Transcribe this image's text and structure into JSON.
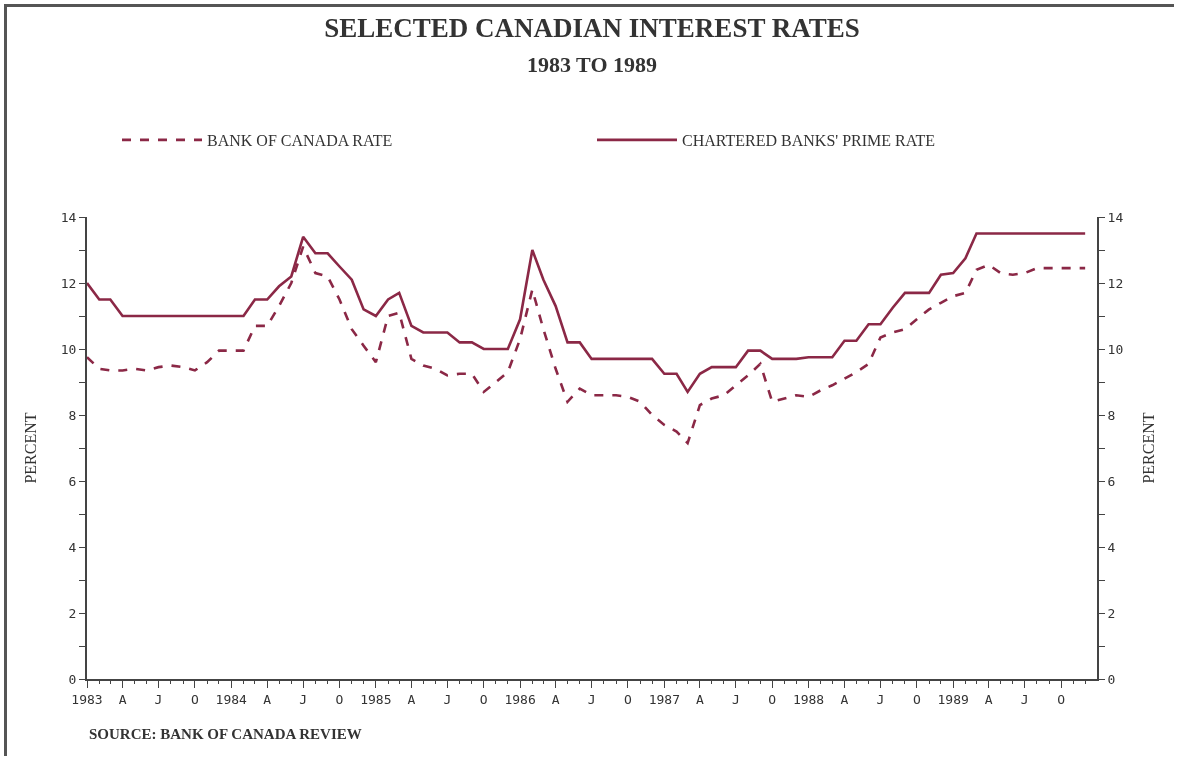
{
  "chart_data": {
    "type": "line",
    "title": "SELECTED CANADIAN INTEREST RATES",
    "subtitle": "1983 TO 1989",
    "ylabel": "PERCENT",
    "y2label": "PERCENT",
    "x": [
      "1983-01",
      "1983-02",
      "1983-03",
      "1983-04",
      "1983-05",
      "1983-06",
      "1983-07",
      "1983-08",
      "1983-09",
      "1983-10",
      "1983-11",
      "1983-12",
      "1984-01",
      "1984-02",
      "1984-03",
      "1984-04",
      "1984-05",
      "1984-06",
      "1984-07",
      "1984-08",
      "1984-09",
      "1984-10",
      "1984-11",
      "1984-12",
      "1985-01",
      "1985-02",
      "1985-03",
      "1985-04",
      "1985-05",
      "1985-06",
      "1985-07",
      "1985-08",
      "1985-09",
      "1985-10",
      "1985-11",
      "1985-12",
      "1986-01",
      "1986-02",
      "1986-03",
      "1986-04",
      "1986-05",
      "1986-06",
      "1986-07",
      "1986-08",
      "1986-09",
      "1986-10",
      "1986-11",
      "1986-12",
      "1987-01",
      "1987-02",
      "1987-03",
      "1987-04",
      "1987-05",
      "1987-06",
      "1987-07",
      "1987-08",
      "1987-09",
      "1987-10",
      "1987-11",
      "1987-12",
      "1988-01",
      "1988-02",
      "1988-03",
      "1988-04",
      "1988-05",
      "1988-06",
      "1988-07",
      "1988-08",
      "1988-09",
      "1988-10",
      "1988-11",
      "1988-12",
      "1989-01",
      "1989-02",
      "1989-03",
      "1989-04",
      "1989-05",
      "1989-06",
      "1989-07",
      "1989-08",
      "1989-09",
      "1989-10",
      "1989-11",
      "1989-12"
    ],
    "series": [
      {
        "name": "BANK OF CANADA RATE",
        "color": "#8b2846",
        "line_style": "dashed",
        "values": [
          9.75,
          9.4,
          9.35,
          9.35,
          9.4,
          9.35,
          9.45,
          9.5,
          9.45,
          9.35,
          9.6,
          9.95,
          9.95,
          9.95,
          10.7,
          10.7,
          11.3,
          12.0,
          13.1,
          12.3,
          12.2,
          11.5,
          10.6,
          10.1,
          9.6,
          11.0,
          11.1,
          9.7,
          9.5,
          9.4,
          9.2,
          9.25,
          9.25,
          8.7,
          9.0,
          9.3,
          10.3,
          11.8,
          10.6,
          9.4,
          8.4,
          8.8,
          8.6,
          8.6,
          8.6,
          8.55,
          8.4,
          8.0,
          7.7,
          7.5,
          7.15,
          8.3,
          8.5,
          8.6,
          8.9,
          9.2,
          9.55,
          8.4,
          8.5,
          8.6,
          8.55,
          8.75,
          8.9,
          9.1,
          9.3,
          9.55,
          10.35,
          10.5,
          10.6,
          10.9,
          11.2,
          11.4,
          11.6,
          11.7,
          12.4,
          12.55,
          12.3,
          12.25,
          12.3,
          12.45,
          12.45,
          12.45,
          12.45,
          12.45
        ]
      },
      {
        "name": "CHARTERED BANKS' PRIME RATE",
        "color": "#8b2846",
        "line_style": "solid",
        "values": [
          12.0,
          11.5,
          11.5,
          11.0,
          11.0,
          11.0,
          11.0,
          11.0,
          11.0,
          11.0,
          11.0,
          11.0,
          11.0,
          11.0,
          11.5,
          11.5,
          11.9,
          12.2,
          13.4,
          12.9,
          12.9,
          12.5,
          12.1,
          11.2,
          11.0,
          11.5,
          11.7,
          10.7,
          10.5,
          10.5,
          10.5,
          10.2,
          10.2,
          10.0,
          10.0,
          10.0,
          10.9,
          13.0,
          12.1,
          11.3,
          10.2,
          10.2,
          9.7,
          9.7,
          9.7,
          9.7,
          9.7,
          9.7,
          9.25,
          9.25,
          8.7,
          9.25,
          9.45,
          9.45,
          9.45,
          9.95,
          9.95,
          9.7,
          9.7,
          9.7,
          9.75,
          9.75,
          9.75,
          10.25,
          10.25,
          10.75,
          10.75,
          11.25,
          11.7,
          11.7,
          11.7,
          12.25,
          12.3,
          12.75,
          13.5,
          13.5,
          13.5,
          13.5,
          13.5,
          13.5,
          13.5,
          13.5,
          13.5,
          13.5
        ]
      }
    ],
    "xlim": [
      "1983-01-01",
      "1989-12-31"
    ],
    "xticks": [
      {
        "value": "1983-01",
        "label": "1983"
      },
      {
        "value": "1983-04",
        "label": "A"
      },
      {
        "value": "1983-07",
        "label": "J"
      },
      {
        "value": "1983-10",
        "label": "O"
      },
      {
        "value": "1984-01",
        "label": "1984"
      },
      {
        "value": "1984-04",
        "label": "A"
      },
      {
        "value": "1984-07",
        "label": "J"
      },
      {
        "value": "1984-10",
        "label": "O"
      },
      {
        "value": "1985-01",
        "label": "1985"
      },
      {
        "value": "1985-04",
        "label": "A"
      },
      {
        "value": "1985-07",
        "label": "J"
      },
      {
        "value": "1985-10",
        "label": "O"
      },
      {
        "value": "1986-01",
        "label": "1986"
      },
      {
        "value": "1986-04",
        "label": "A"
      },
      {
        "value": "1986-07",
        "label": "J"
      },
      {
        "value": "1986-10",
        "label": "O"
      },
      {
        "value": "1987-01",
        "label": "1987"
      },
      {
        "value": "1987-04",
        "label": "A"
      },
      {
        "value": "1987-07",
        "label": "J"
      },
      {
        "value": "1987-10",
        "label": "O"
      },
      {
        "value": "1988-01",
        "label": "1988"
      },
      {
        "value": "1988-04",
        "label": "A"
      },
      {
        "value": "1988-07",
        "label": "J"
      },
      {
        "value": "1988-10",
        "label": "O"
      },
      {
        "value": "1989-01",
        "label": "1989"
      },
      {
        "value": "1989-04",
        "label": "A"
      },
      {
        "value": "1989-07",
        "label": "J"
      },
      {
        "value": "1989-10",
        "label": "O"
      }
    ],
    "ylim": [
      0,
      14
    ],
    "yticks": [
      0,
      {
        "value": 1,
        "label": null
      },
      2,
      {
        "value": 3,
        "label": null
      },
      4,
      {
        "value": 5,
        "label": null
      },
      6,
      {
        "value": 7,
        "label": null
      },
      8,
      {
        "value": 9,
        "label": null
      },
      10,
      {
        "value": 11,
        "label": null
      },
      12,
      {
        "value": 13,
        "label": null
      },
      14
    ],
    "y2lim": [
      0,
      14
    ],
    "y2ticks": [
      0,
      {
        "value": 1,
        "label": null
      },
      2,
      {
        "value": 3,
        "label": null
      },
      4,
      {
        "value": 5,
        "label": null
      },
      6,
      {
        "value": 7,
        "label": null
      },
      8,
      {
        "value": 9,
        "label": null
      },
      10,
      {
        "value": 11,
        "label": null
      },
      12,
      {
        "value": 13,
        "label": null
      },
      14
    ],
    "grid": false,
    "legend": "top",
    "marker": "none",
    "annotations": [
      "SOURCE: BANK OF CANADA REVIEW"
    ]
  }
}
